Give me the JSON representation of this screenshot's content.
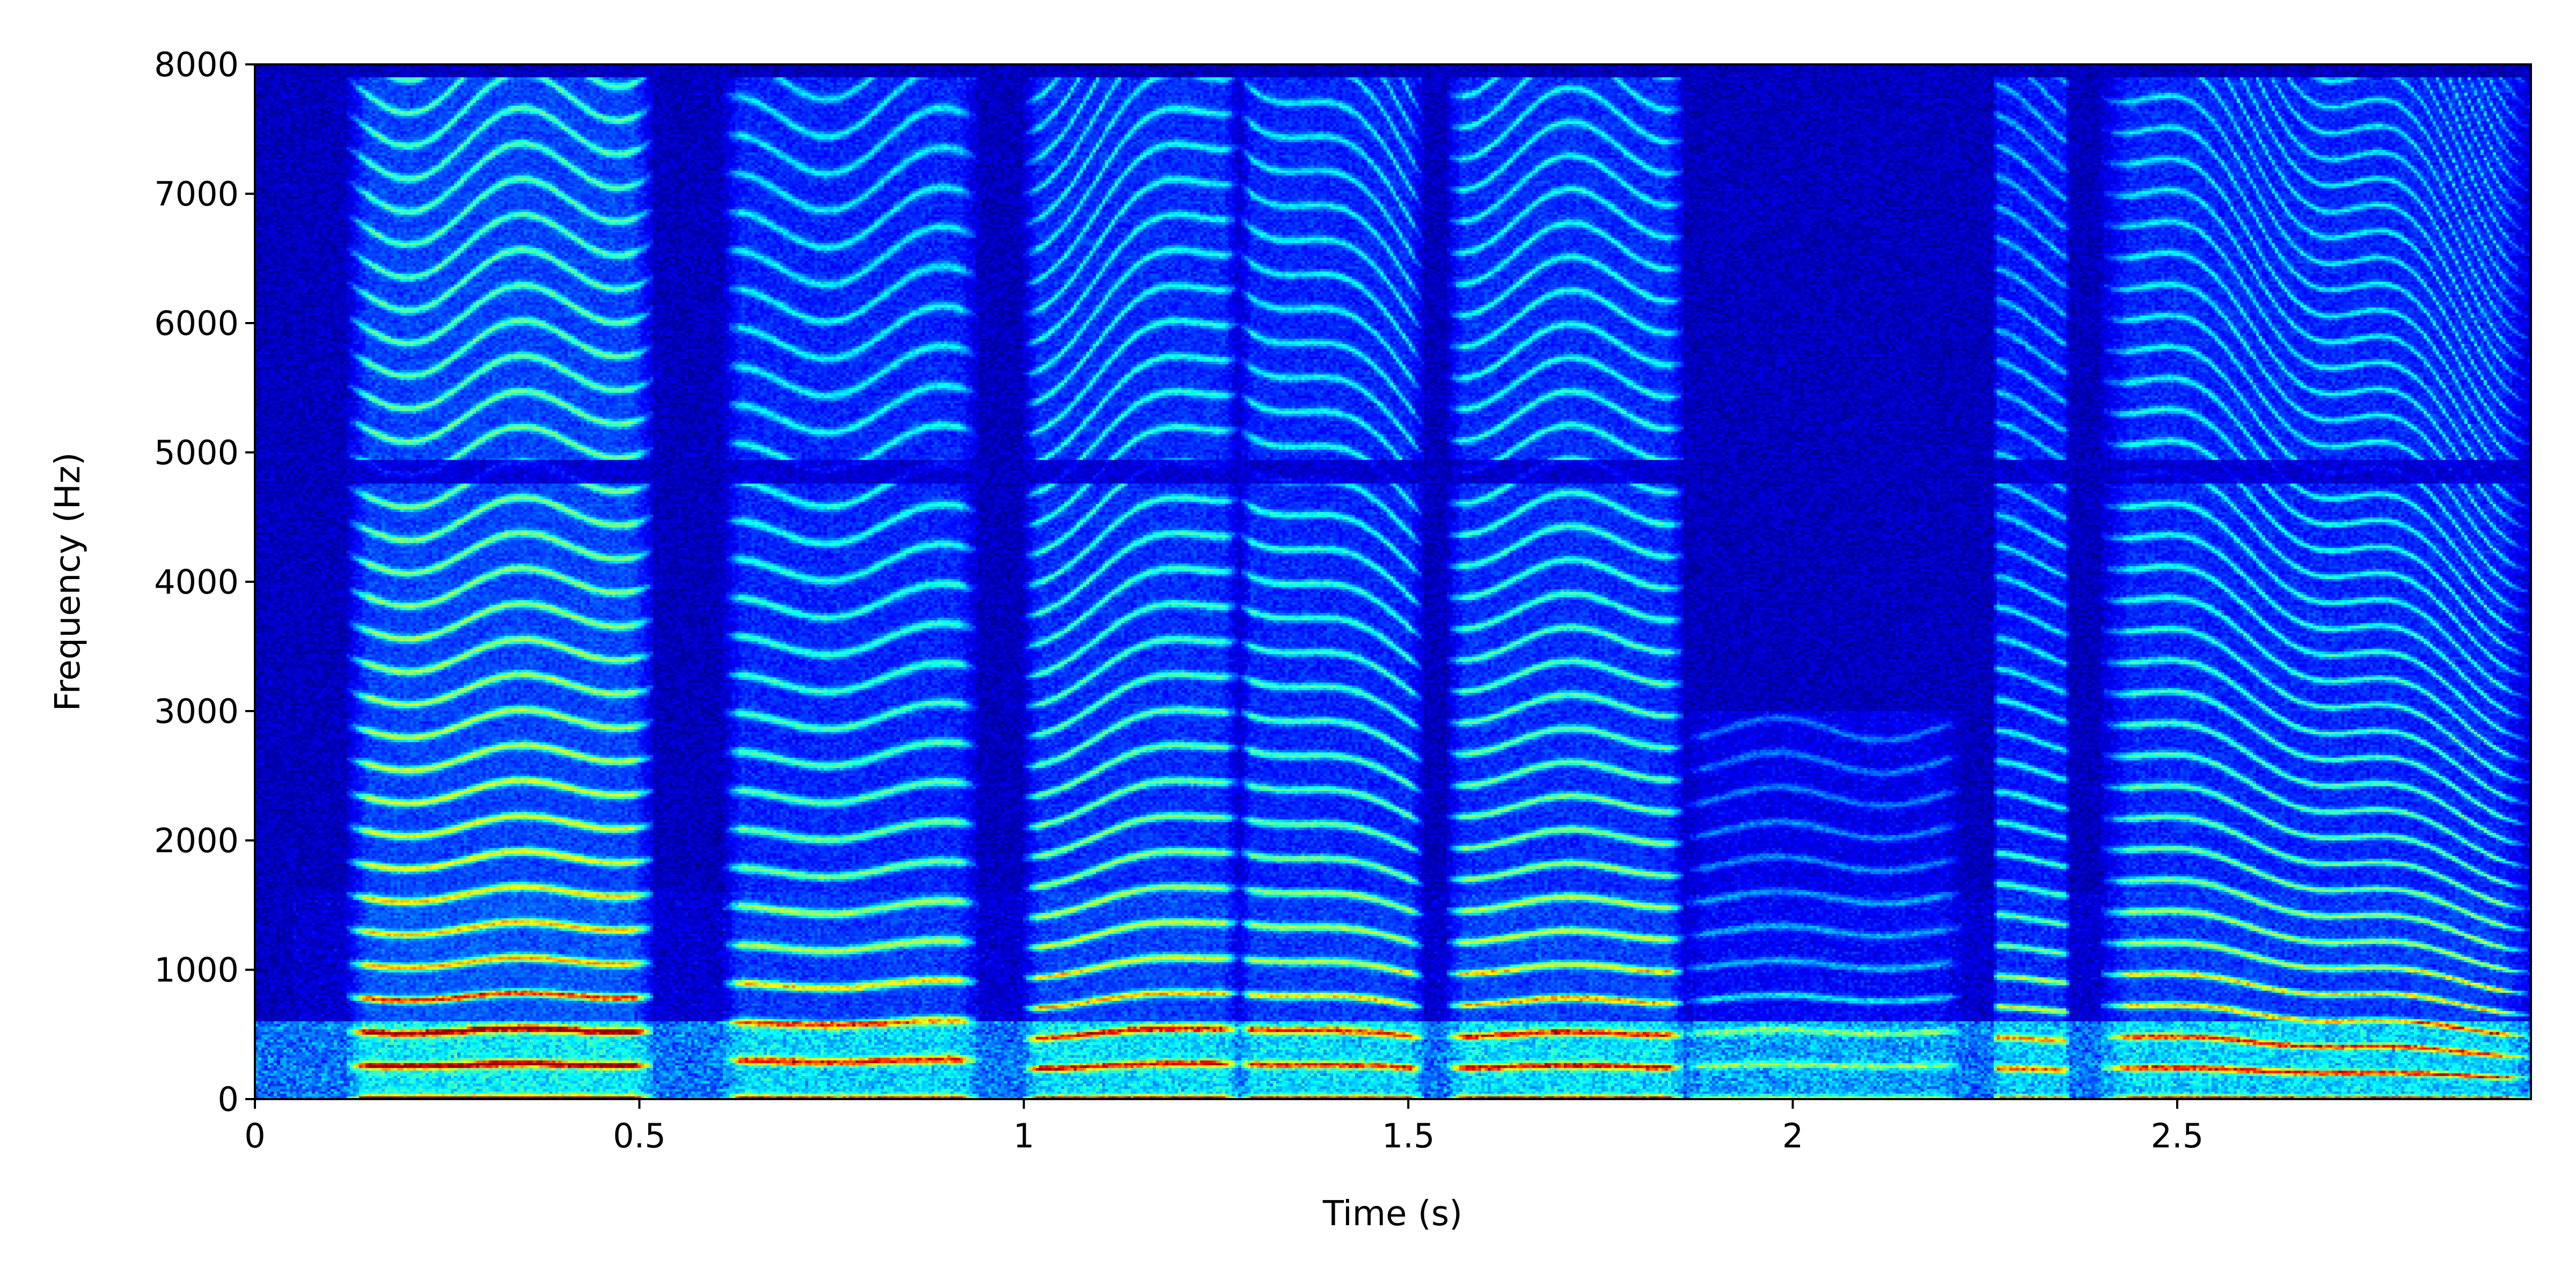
{
  "chart_data": {
    "type": "heatmap",
    "title": "",
    "xlabel": "Time (s)",
    "ylabel": "Frequency (Hz)",
    "xlim": [
      0,
      2.96
    ],
    "ylim": [
      0,
      8000
    ],
    "x_ticks": [
      0,
      0.5,
      1,
      1.5,
      2,
      2.5
    ],
    "x_tick_labels": [
      "0",
      "0.5",
      "1",
      "1.5",
      "2",
      "2.5"
    ],
    "y_ticks": [
      0,
      1000,
      2000,
      3000,
      4000,
      5000,
      6000,
      7000,
      8000
    ],
    "y_tick_labels": [
      "0",
      "1000",
      "2000",
      "3000",
      "4000",
      "5000",
      "6000",
      "7000",
      "8000"
    ],
    "colormap": "jet",
    "grid": false,
    "legend": "none",
    "segments": [
      {
        "start": 0.12,
        "end": 0.52,
        "f0": 260,
        "f0_end": 270,
        "fmax": 7900,
        "energy": 0.85
      },
      {
        "start": 0.61,
        "end": 0.94,
        "f0": 290,
        "f0_end": 300,
        "fmax": 7900,
        "energy": 0.65
      },
      {
        "start": 1.0,
        "end": 1.28,
        "f0": 240,
        "f0_end": 280,
        "fmax": 7900,
        "energy": 0.7
      },
      {
        "start": 1.28,
        "end": 1.52,
        "f0": 280,
        "f0_end": 240,
        "fmax": 7900,
        "energy": 0.65
      },
      {
        "start": 1.55,
        "end": 1.86,
        "f0": 250,
        "f0_end": 255,
        "fmax": 7900,
        "energy": 0.7
      },
      {
        "start": 1.86,
        "end": 2.22,
        "f0": 260,
        "f0_end": 260,
        "fmax": 3000,
        "energy": 0.3
      },
      {
        "start": 2.26,
        "end": 2.36,
        "f0": 230,
        "f0_end": 230,
        "fmax": 7900,
        "energy": 0.55
      },
      {
        "start": 2.4,
        "end": 2.96,
        "f0": 250,
        "f0_end": 170,
        "fmax": 7900,
        "energy": 0.65
      }
    ]
  }
}
